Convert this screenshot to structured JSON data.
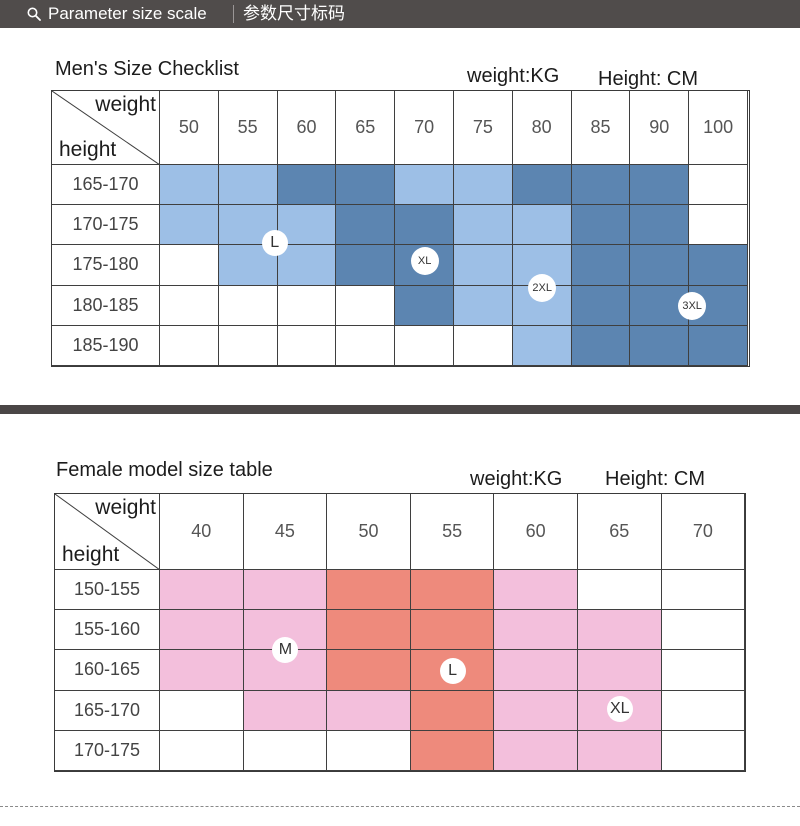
{
  "header": {
    "title_en": "Parameter size scale",
    "title_cn": "参数尺寸标码"
  },
  "colors": {
    "header_bg": "#504c4b",
    "men_light": "#9dbfe6",
    "men_dark": "#5c85b1",
    "female_light": "#f3bfdc",
    "female_dark": "#ee8a7c",
    "empty": "#ffffff"
  },
  "men": {
    "title": "Men's Size Checklist",
    "weight_unit": "weight:KG",
    "height_unit": "Height: CM",
    "corner_weight": "weight",
    "corner_height": "height",
    "weights": [
      "50",
      "55",
      "60",
      "65",
      "70",
      "75",
      "80",
      "85",
      "90",
      "100"
    ],
    "heights": [
      "165-170",
      "170-175",
      "175-180",
      "180-185",
      "185-190"
    ],
    "grid": [
      [
        "L",
        "L",
        "D",
        "D",
        "L",
        "L",
        "D",
        "D",
        "D",
        "W"
      ],
      [
        "L",
        "L",
        "L",
        "D",
        "D",
        "L",
        "L",
        "D",
        "D",
        "W"
      ],
      [
        "W",
        "L",
        "L",
        "D",
        "D",
        "L",
        "L",
        "D",
        "D",
        "D"
      ],
      [
        "W",
        "W",
        "W",
        "W",
        "D",
        "L",
        "L",
        "D",
        "D",
        "D"
      ],
      [
        "W",
        "W",
        "W",
        "W",
        "W",
        "W",
        "L",
        "D",
        "D",
        "D"
      ]
    ],
    "size_labels": [
      {
        "text": "L",
        "col": 1.45,
        "row": 1.45,
        "r": 13,
        "fs": 16
      },
      {
        "text": "XL",
        "col": 4.0,
        "row": 1.9,
        "r": 14,
        "fs": 11
      },
      {
        "text": "2XL",
        "col": 6.0,
        "row": 2.55,
        "r": 14,
        "fs": 11
      },
      {
        "text": "3XL",
        "col": 8.55,
        "row": 3.0,
        "r": 14,
        "fs": 11
      }
    ]
  },
  "female": {
    "title": "Female model size table",
    "weight_unit": "weight:KG",
    "height_unit": "Height: CM",
    "corner_weight": "weight",
    "corner_height": "height",
    "weights": [
      "40",
      "45",
      "50",
      "55",
      "60",
      "65",
      "70"
    ],
    "heights": [
      "150-155",
      "155-160",
      "160-165",
      "165-170",
      "170-175"
    ],
    "grid": [
      [
        "P",
        "P",
        "S",
        "S",
        "P",
        "W",
        "W"
      ],
      [
        "P",
        "P",
        "S",
        "S",
        "P",
        "P",
        "W"
      ],
      [
        "P",
        "P",
        "S",
        "S",
        "P",
        "P",
        "W"
      ],
      [
        "W",
        "P",
        "P",
        "S",
        "P",
        "P",
        "W"
      ],
      [
        "W",
        "W",
        "W",
        "S",
        "P",
        "P",
        "W"
      ]
    ],
    "size_labels": [
      {
        "text": "M",
        "col": 1.0,
        "row": 1.5,
        "r": 13,
        "fs": 16
      },
      {
        "text": "L",
        "col": 3.0,
        "row": 2.0,
        "r": 13,
        "fs": 16
      },
      {
        "text": "XL",
        "col": 5.0,
        "row": 2.95,
        "r": 13,
        "fs": 16
      }
    ]
  }
}
